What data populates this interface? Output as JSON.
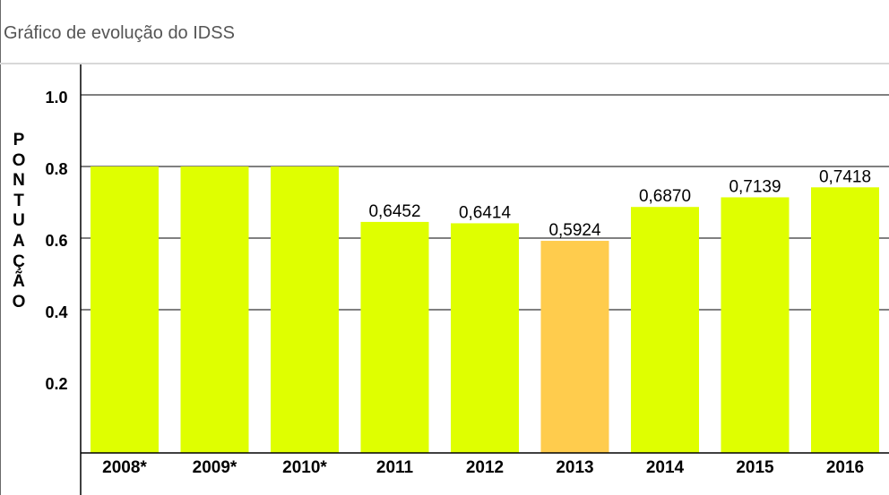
{
  "page": {
    "title": "Gráfico de evolução do IDSS"
  },
  "colors": {
    "bar": "#dfff00",
    "highlight_bar": "#ffcc4d",
    "gridline": "#000000"
  },
  "chart_data": {
    "type": "bar",
    "title": "Gráfico de evolução do IDSS",
    "ylabel": "PONTUAÇÃO",
    "xlabel": "",
    "ylim": [
      0,
      1.2
    ],
    "yticks": [
      0.2,
      0.4,
      0.6,
      0.8,
      1.0
    ],
    "yticklabels": [
      "0.2",
      "0.4",
      "0.6",
      "0.8",
      "1.0"
    ],
    "gridlines": [
      0.4,
      0.6,
      0.8,
      1.0
    ],
    "grid": true,
    "categories": [
      "2008*",
      "2009*",
      "2010*",
      "2011",
      "2012",
      "2013",
      "2014",
      "2015",
      "2016"
    ],
    "values": [
      0.8,
      0.8,
      0.8,
      0.6452,
      0.6414,
      0.5924,
      0.687,
      0.7139,
      0.7418
    ],
    "value_labels": [
      "",
      "",
      "",
      "0,6452",
      "0,6414",
      "0,5924",
      "0,6870",
      "0,7139",
      "0,7418"
    ],
    "highlight_category": "2013"
  }
}
